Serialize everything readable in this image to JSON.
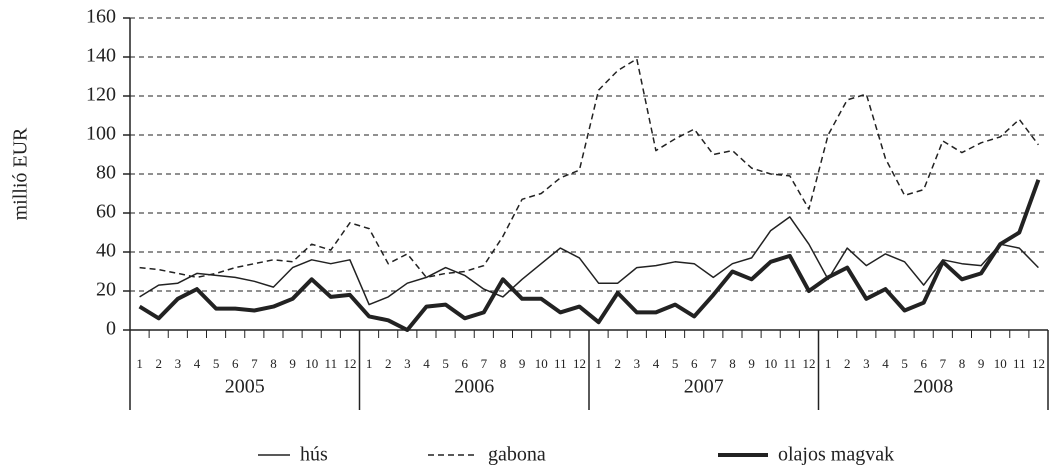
{
  "chart_data": {
    "type": "line",
    "y_label": "millió EUR",
    "categories": [
      "1",
      "2",
      "3",
      "4",
      "5",
      "6",
      "7",
      "8",
      "9",
      "10",
      "11",
      "12",
      "1",
      "2",
      "3",
      "4",
      "5",
      "6",
      "7",
      "8",
      "9",
      "10",
      "11",
      "12",
      "1",
      "2",
      "3",
      "4",
      "5",
      "6",
      "7",
      "8",
      "9",
      "10",
      "11",
      "12",
      "1",
      "2",
      "3",
      "4",
      "5",
      "6",
      "7",
      "8",
      "9",
      "10",
      "11",
      "12"
    ],
    "years": [
      "2005",
      "2006",
      "2007",
      "2008"
    ],
    "series": [
      {
        "name": "hús",
        "color": "#222222",
        "style": "solid",
        "values": [
          17,
          23,
          24,
          29,
          28,
          27,
          25,
          22,
          32,
          36,
          34,
          36,
          13,
          17,
          24,
          27,
          32,
          28,
          21,
          17,
          26,
          34,
          42,
          37,
          24,
          24,
          32,
          33,
          35,
          34,
          27,
          34,
          37,
          51,
          58,
          44,
          26,
          42,
          33,
          39,
          35,
          23,
          36,
          34,
          33,
          44,
          42,
          32
        ]
      },
      {
        "name": "gabona",
        "color": "#222222",
        "style": "dashed",
        "values": [
          32,
          31,
          29,
          27,
          29,
          32,
          34,
          36,
          35,
          44,
          41,
          55,
          52,
          34,
          39,
          27,
          29,
          30,
          33,
          48,
          67,
          70,
          78,
          82,
          123,
          133,
          139,
          92,
          98,
          103,
          90,
          92,
          83,
          80,
          79,
          62,
          100,
          118,
          121,
          88,
          69,
          72,
          97,
          91,
          96,
          99,
          108,
          95
        ]
      },
      {
        "name": "olajos magvak",
        "color": "#222222",
        "style": "thick",
        "values": [
          12,
          6,
          16,
          21,
          11,
          11,
          10,
          12,
          16,
          26,
          17,
          18,
          7,
          5,
          0,
          12,
          13,
          6,
          9,
          26,
          16,
          16,
          9,
          12,
          4,
          19,
          9,
          9,
          13,
          7,
          18,
          30,
          26,
          35,
          38,
          20,
          27,
          32,
          16,
          21,
          10,
          14,
          35,
          26,
          29,
          44,
          50,
          77
        ]
      }
    ],
    "ylim": [
      0,
      160
    ],
    "yticks": [
      0,
      20,
      40,
      60,
      80,
      100,
      120,
      140,
      160
    ],
    "grid": true
  }
}
